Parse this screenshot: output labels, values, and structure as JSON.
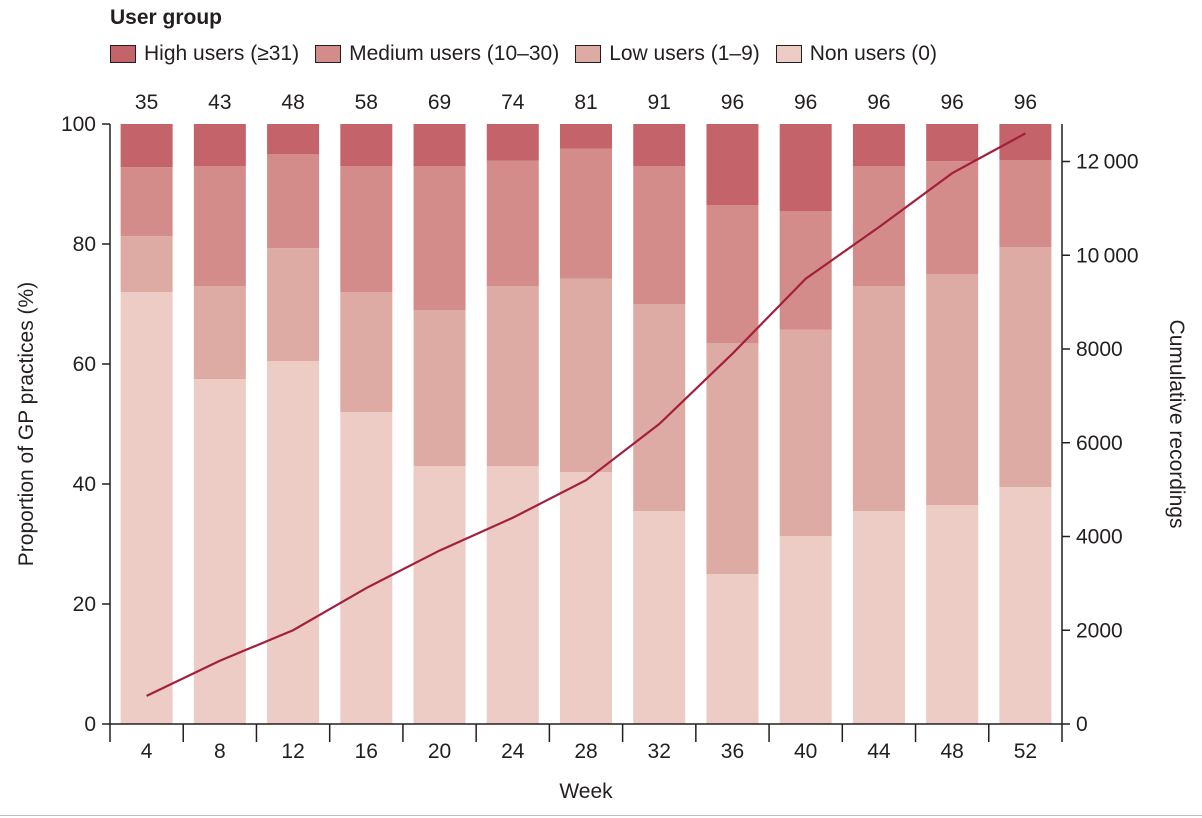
{
  "legend": {
    "title": "User group",
    "items": [
      {
        "label": "High users (≥31)",
        "color": "#c4636a"
      },
      {
        "label": "Medium users (10–30)",
        "color": "#d48c8a"
      },
      {
        "label": "Low users (1–9)",
        "color": "#deaaa4"
      },
      {
        "label": "Non users (0)",
        "color": "#ecccc4"
      }
    ]
  },
  "chart_data": {
    "type": "bar",
    "stacked": true,
    "title": "",
    "xlabel": "Week",
    "ylabel": "Proportion of GP practices (%)",
    "y2label": "Cumulative recordings",
    "ylim": [
      0,
      100
    ],
    "y2lim": [
      0,
      12800
    ],
    "yticks": [
      "0",
      "20",
      "40",
      "60",
      "80",
      "100"
    ],
    "y2ticks": [
      "0",
      "2000",
      "4000",
      "6000",
      "8000",
      "10 000",
      "12 000"
    ],
    "categories": [
      "4",
      "8",
      "12",
      "16",
      "20",
      "24",
      "28",
      "32",
      "36",
      "40",
      "44",
      "48",
      "52"
    ],
    "top_labels": [
      "35",
      "43",
      "48",
      "58",
      "69",
      "74",
      "81",
      "91",
      "96",
      "96",
      "96",
      "96",
      "96"
    ],
    "series": [
      {
        "name": "Non users (0)",
        "color": "#ecccc4",
        "values": [
          72,
          57.5,
          60.5,
          52,
          43,
          43,
          42,
          35.5,
          25,
          31.3,
          35.5,
          36.5,
          39.5
        ]
      },
      {
        "name": "Low users (1–9)",
        "color": "#deaaa4",
        "values": [
          9.3,
          15.5,
          18.8,
          20,
          26,
          30,
          32.2,
          34.5,
          38.5,
          34.4,
          37.5,
          38.5,
          40
        ]
      },
      {
        "name": "Medium users (10–30)",
        "color": "#d48c8a",
        "values": [
          11.5,
          20,
          15.7,
          21,
          24,
          20.9,
          21.7,
          23,
          23,
          19.8,
          20,
          18.8,
          14.5
        ]
      },
      {
        "name": "High users (≥31)",
        "color": "#c4636a",
        "values": [
          7.2,
          7,
          5,
          7,
          7,
          6.1,
          4.1,
          7,
          13.5,
          14.5,
          7,
          6.2,
          6
        ]
      }
    ],
    "line": {
      "name": "Cumulative recordings",
      "color": "#a3203c",
      "values": [
        600,
        1350,
        2000,
        2900,
        3700,
        4400,
        5200,
        6400,
        7900,
        9500,
        10600,
        11750,
        12600
      ]
    }
  }
}
